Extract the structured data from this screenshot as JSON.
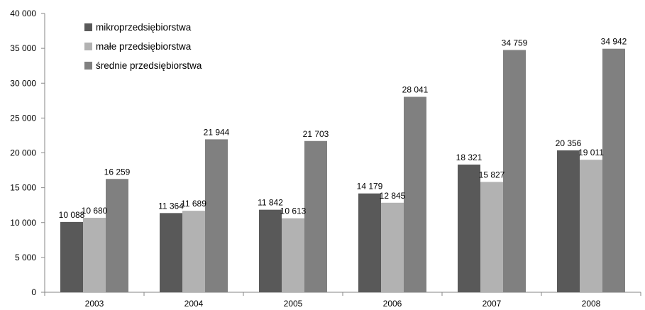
{
  "chart_data": {
    "type": "bar",
    "title": "",
    "xlabel": "",
    "ylabel": "",
    "categories": [
      "2003",
      "2004",
      "2005",
      "2006",
      "2007",
      "2008"
    ],
    "series": [
      {
        "name": "mikroprzedsiębiorstwa",
        "color": "#595959",
        "values": [
          10088,
          11364,
          11842,
          14179,
          18321,
          20356
        ],
        "labels": [
          "10 088",
          "11 364",
          "11 842",
          "14 179",
          "18 321",
          "20 356"
        ]
      },
      {
        "name": "małe przedsiębiorstwa",
        "color": "#b2b2b2",
        "values": [
          10680,
          11689,
          10613,
          12845,
          15827,
          19011
        ],
        "labels": [
          "10 680",
          "11 689",
          "10 613",
          "12 845",
          "15 827",
          "19 011"
        ]
      },
      {
        "name": "średnie przedsiębiorstwa",
        "color": "#808080",
        "values": [
          16259,
          21944,
          21703,
          28041,
          34759,
          34942
        ],
        "labels": [
          "16 259",
          "21 944",
          "21 703",
          "28 041",
          "34 759",
          "34 942"
        ]
      }
    ],
    "ylim": [
      0,
      40000
    ],
    "yticks": [
      0,
      5000,
      10000,
      15000,
      20000,
      25000,
      30000,
      35000,
      40000
    ],
    "ytick_labels": [
      "0",
      "5 000",
      "10 000",
      "15 000",
      "20 000",
      "25 000",
      "30 000",
      "35 000",
      "40 000"
    ],
    "grid": false,
    "legend_position": "top-left"
  }
}
